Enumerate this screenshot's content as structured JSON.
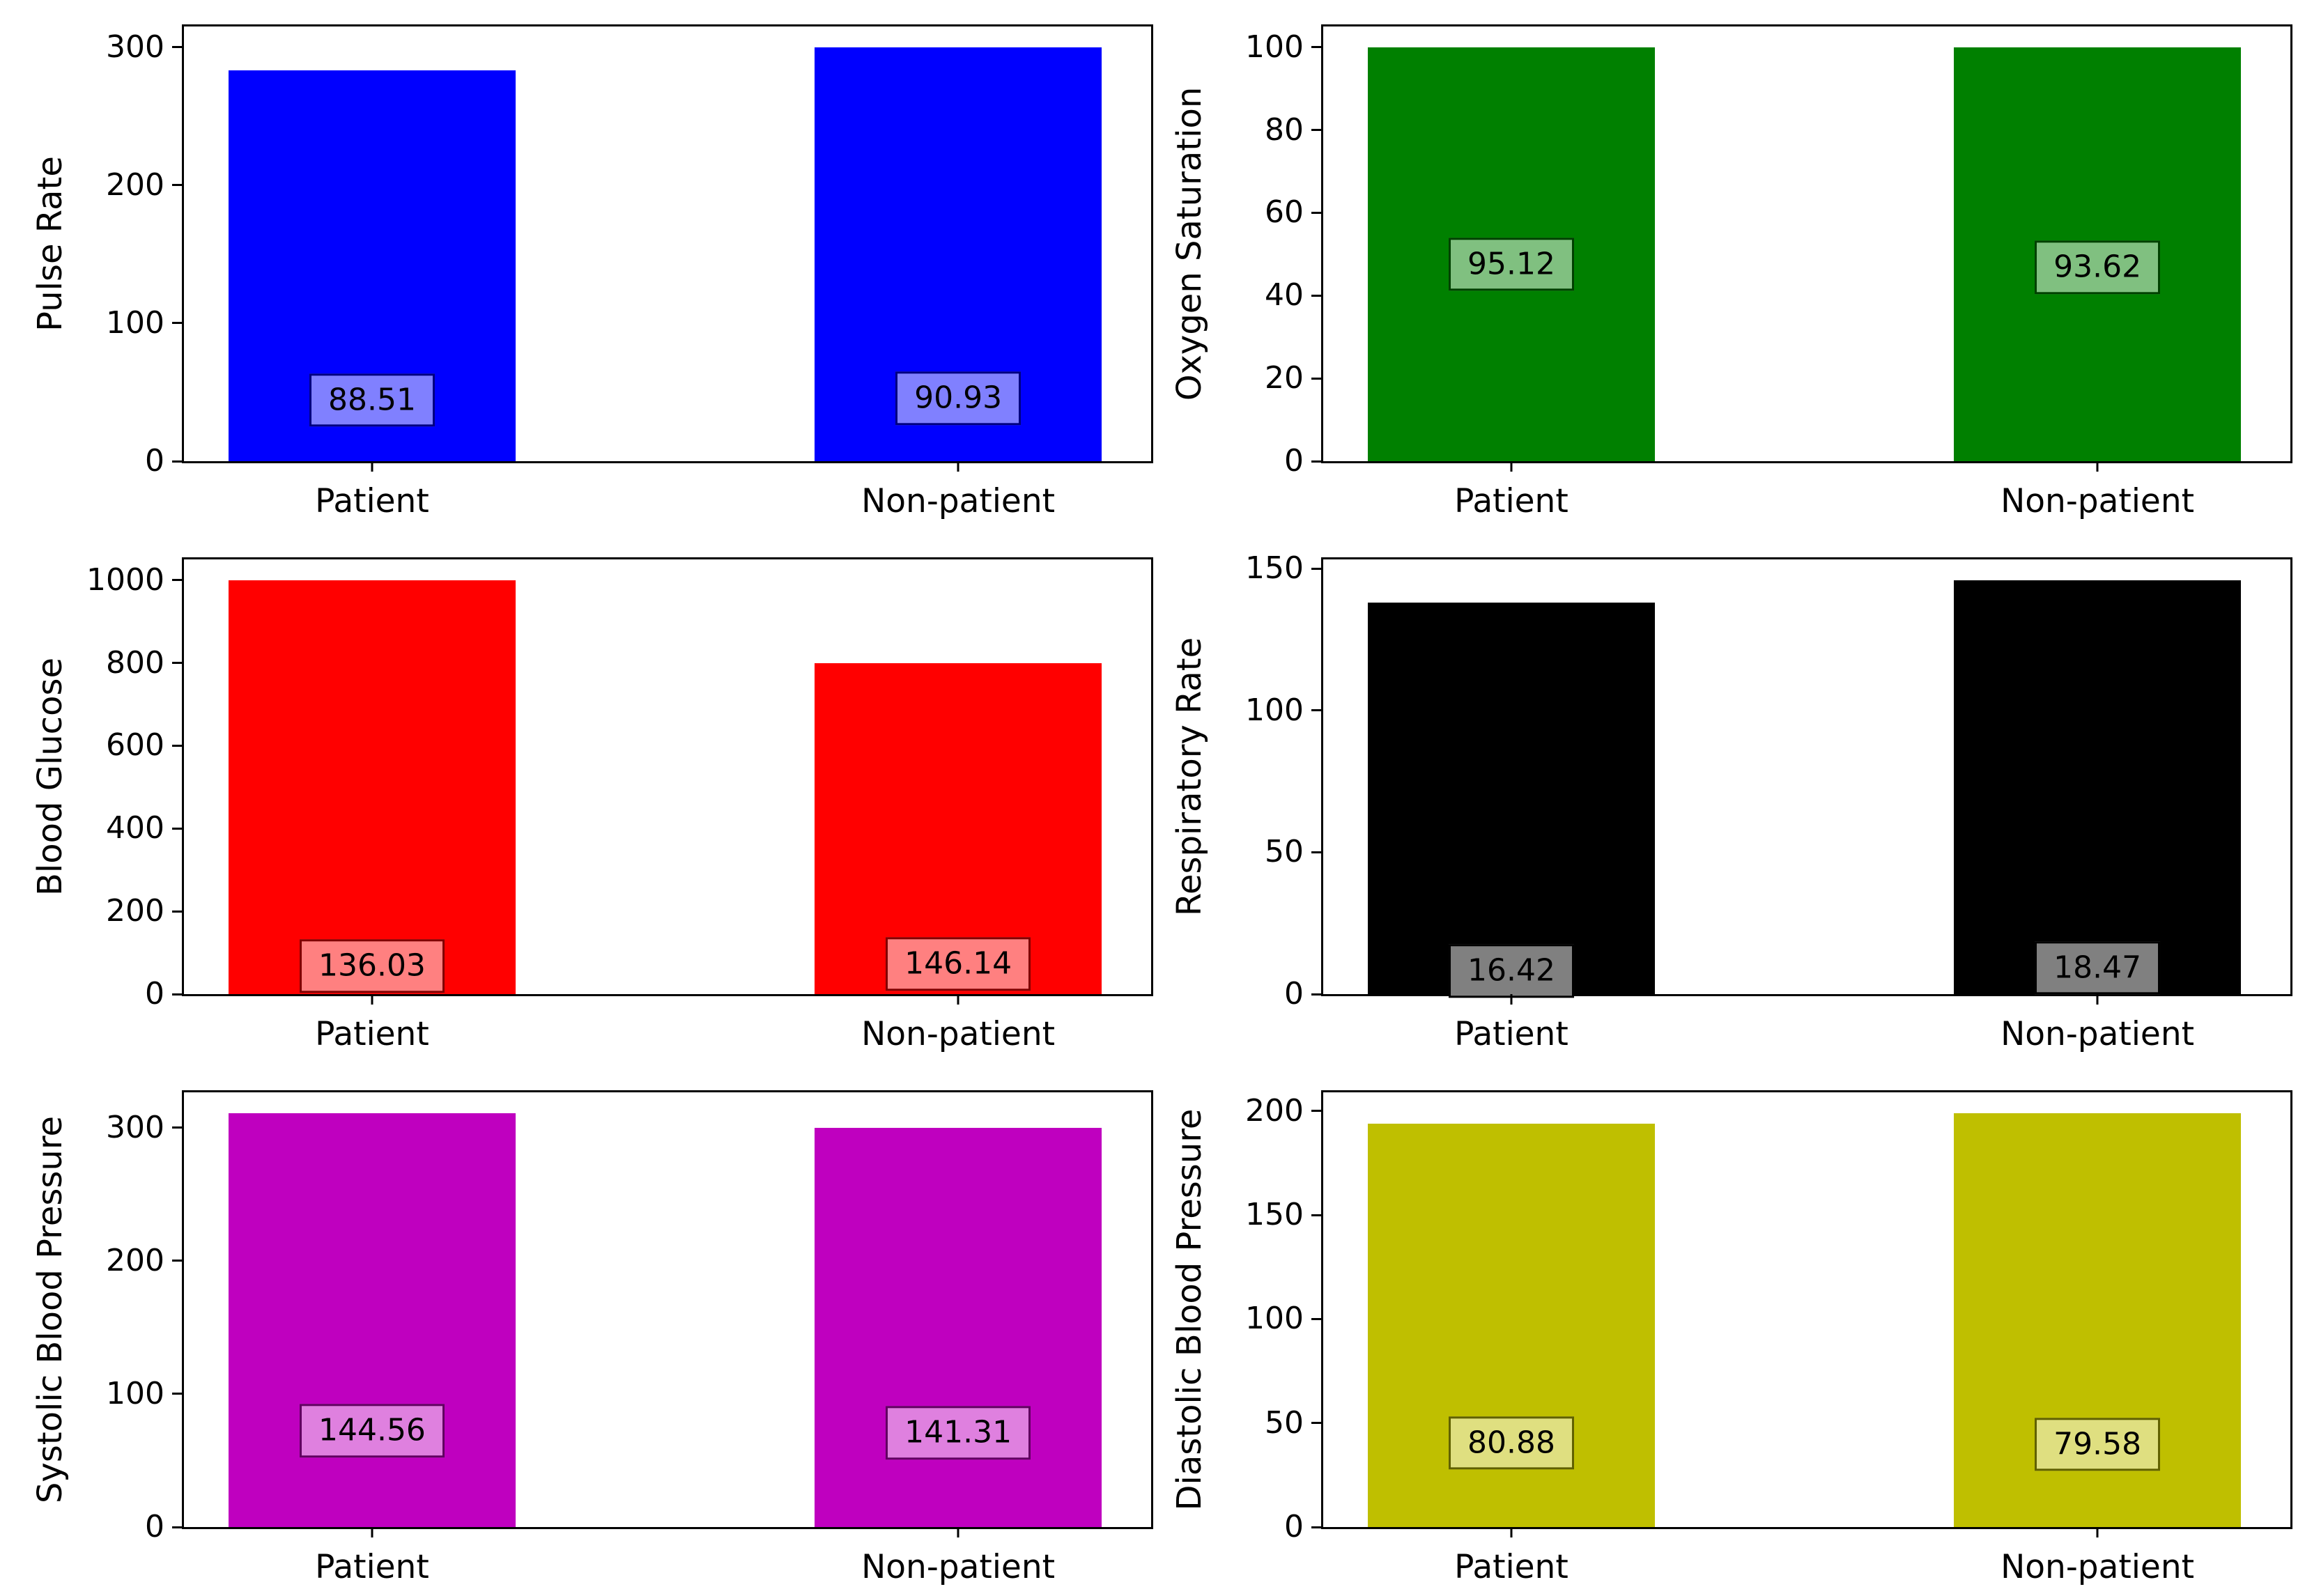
{
  "figure": {
    "background": "#ffffff",
    "rows": 3,
    "cols": 2,
    "category_axis_labels": [
      "Patient",
      "Non-patient"
    ]
  },
  "chart_data": [
    {
      "type": "bar",
      "title": "",
      "xlabel": "",
      "ylabel": "Pulse Rate",
      "categories": [
        "Patient",
        "Non-patient"
      ],
      "values": [
        283,
        300
      ],
      "value_labels": [
        "88.51",
        "90.93"
      ],
      "yticks": [
        0,
        100,
        200,
        300
      ],
      "ylim": [
        0,
        315
      ],
      "grid": false,
      "legend": "none",
      "bar_color": "#0000ff",
      "label_box_fill": "#8080ff",
      "label_box_edge": "#000080",
      "label_text_color": "#000000"
    },
    {
      "type": "bar",
      "title": "",
      "xlabel": "",
      "ylabel": "Oxygen Saturation",
      "categories": [
        "Patient",
        "Non-patient"
      ],
      "values": [
        100,
        100
      ],
      "value_labels": [
        "95.12",
        "93.62"
      ],
      "yticks": [
        0,
        20,
        40,
        60,
        80,
        100
      ],
      "ylim": [
        0,
        105
      ],
      "grid": false,
      "legend": "none",
      "bar_color": "#008000",
      "label_box_fill": "#80c080",
      "label_box_edge": "#004000",
      "label_text_color": "#000000"
    },
    {
      "type": "bar",
      "title": "",
      "xlabel": "",
      "ylabel": "Blood Glucose",
      "categories": [
        "Patient",
        "Non-patient"
      ],
      "values": [
        1000,
        800
      ],
      "value_labels": [
        "136.03",
        "146.14"
      ],
      "yticks": [
        0,
        200,
        400,
        600,
        800,
        1000
      ],
      "ylim": [
        0,
        1050
      ],
      "grid": false,
      "legend": "none",
      "bar_color": "#ff0000",
      "label_box_fill": "#ff8080",
      "label_box_edge": "#800000",
      "label_text_color": "#000000"
    },
    {
      "type": "bar",
      "title": "",
      "xlabel": "",
      "ylabel": "Respiratory Rate",
      "categories": [
        "Patient",
        "Non-patient"
      ],
      "values": [
        138,
        146
      ],
      "value_labels": [
        "16.42",
        "18.47"
      ],
      "yticks": [
        0,
        50,
        100,
        150
      ],
      "ylim": [
        0,
        153.3
      ],
      "grid": false,
      "legend": "none",
      "bar_color": "#000000",
      "label_box_fill": "#808080",
      "label_box_edge": "#000000",
      "label_text_color": "#000000"
    },
    {
      "type": "bar",
      "title": "",
      "xlabel": "",
      "ylabel": "Systolic Blood Pressure",
      "categories": [
        "Patient",
        "Non-patient"
      ],
      "values": [
        311,
        300
      ],
      "value_labels": [
        "144.56",
        "141.31"
      ],
      "yticks": [
        0,
        100,
        200,
        300
      ],
      "ylim": [
        0,
        326.55
      ],
      "grid": false,
      "legend": "none",
      "bar_color": "#bf00bf",
      "label_box_fill": "#df80df",
      "label_box_edge": "#600060",
      "label_text_color": "#000000"
    },
    {
      "type": "bar",
      "title": "",
      "xlabel": "",
      "ylabel": "Diastolic Blood Pressure",
      "categories": [
        "Patient",
        "Non-patient"
      ],
      "values": [
        194,
        199
      ],
      "value_labels": [
        "80.88",
        "79.58"
      ],
      "yticks": [
        0,
        50,
        100,
        150,
        200
      ],
      "ylim": [
        0,
        208.95
      ],
      "grid": false,
      "legend": "none",
      "bar_color": "#bfbf00",
      "label_box_fill": "#dfdf80",
      "label_box_edge": "#606000",
      "label_text_color": "#000000"
    }
  ]
}
